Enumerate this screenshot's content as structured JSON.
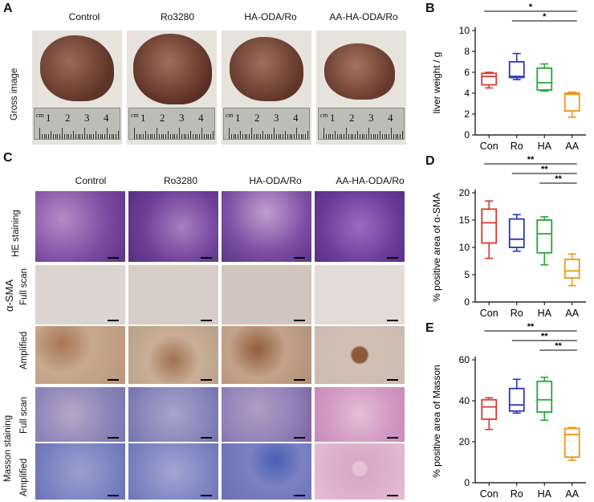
{
  "panel_letters": {
    "A": "A",
    "B": "B",
    "C": "C",
    "D": "D",
    "E": "E"
  },
  "groups": [
    "Control",
    "Ro3280",
    "HA-ODA/Ro",
    "AA-HA-ODA/Ro"
  ],
  "panelA": {
    "row_label": "Gross image",
    "ruler_labels": [
      "cm",
      "1",
      "2",
      "3",
      "4"
    ]
  },
  "panelC": {
    "he_label": "HE staining",
    "sma_label": "α-SMA",
    "masson_label": "Masson staining",
    "full_scan": "Full scan",
    "amplified": "Amplified"
  },
  "colors": {
    "Con": "#d9392b",
    "Ro": "#2a36b8",
    "HA": "#26a833",
    "AA": "#f0961a"
  },
  "chart_data": [
    {
      "id": "B",
      "type": "box",
      "ylabel": "liver weight / g",
      "ylim": [
        0,
        10
      ],
      "yticks": [
        0,
        2,
        4,
        6,
        8,
        10
      ],
      "categories": [
        "Con",
        "Ro",
        "HA",
        "AA"
      ],
      "boxes": [
        {
          "min": 4.5,
          "q1": 4.8,
          "median": 5.6,
          "q3": 5.9,
          "max": 6.0
        },
        {
          "min": 5.3,
          "q1": 5.5,
          "median": 5.6,
          "q3": 7.0,
          "max": 7.8
        },
        {
          "min": 4.2,
          "q1": 4.3,
          "median": 5.0,
          "q3": 6.4,
          "max": 6.8
        },
        {
          "min": 1.7,
          "q1": 2.3,
          "median": 3.9,
          "q3": 4.0,
          "max": 4.1
        }
      ],
      "sig": [
        {
          "from": 0,
          "to": 3,
          "label": "*"
        },
        {
          "from": 1,
          "to": 3,
          "label": "*"
        }
      ]
    },
    {
      "id": "D",
      "type": "box",
      "ylabel": "% positive area of α-SMA",
      "ylim": [
        0,
        20
      ],
      "yticks": [
        0,
        5,
        10,
        15,
        20
      ],
      "categories": [
        "Con",
        "Ro",
        "HA",
        "AA"
      ],
      "boxes": [
        {
          "min": 8.0,
          "q1": 10.8,
          "median": 14.5,
          "q3": 17.0,
          "max": 18.5
        },
        {
          "min": 9.3,
          "q1": 10.0,
          "median": 11.5,
          "q3": 15.2,
          "max": 16.0
        },
        {
          "min": 6.8,
          "q1": 9.0,
          "median": 12.5,
          "q3": 15.0,
          "max": 15.6
        },
        {
          "min": 3.0,
          "q1": 4.4,
          "median": 5.7,
          "q3": 7.8,
          "max": 8.8
        }
      ],
      "sig": [
        {
          "from": 0,
          "to": 3,
          "label": "**"
        },
        {
          "from": 1,
          "to": 3,
          "label": "**"
        },
        {
          "from": 2,
          "to": 3,
          "label": "**"
        }
      ]
    },
    {
      "id": "E",
      "type": "box",
      "ylabel": "% positive area of Masson",
      "ylim": [
        0,
        60
      ],
      "yticks": [
        0,
        20,
        40,
        60
      ],
      "categories": [
        "Con",
        "Ro",
        "HA",
        "AA"
      ],
      "boxes": [
        {
          "min": 26.0,
          "q1": 31.0,
          "median": 37.0,
          "q3": 40.5,
          "max": 41.5
        },
        {
          "min": 34.0,
          "q1": 35.0,
          "median": 38.0,
          "q3": 46.0,
          "max": 50.5
        },
        {
          "min": 30.5,
          "q1": 34.5,
          "median": 40.5,
          "q3": 49.5,
          "max": 51.5
        },
        {
          "min": 11.0,
          "q1": 12.5,
          "median": 23.5,
          "q3": 26.5,
          "max": 27.0
        }
      ],
      "sig": [
        {
          "from": 0,
          "to": 3,
          "label": "**"
        },
        {
          "from": 1,
          "to": 3,
          "label": "**"
        },
        {
          "from": 2,
          "to": 3,
          "label": "**"
        }
      ]
    }
  ]
}
